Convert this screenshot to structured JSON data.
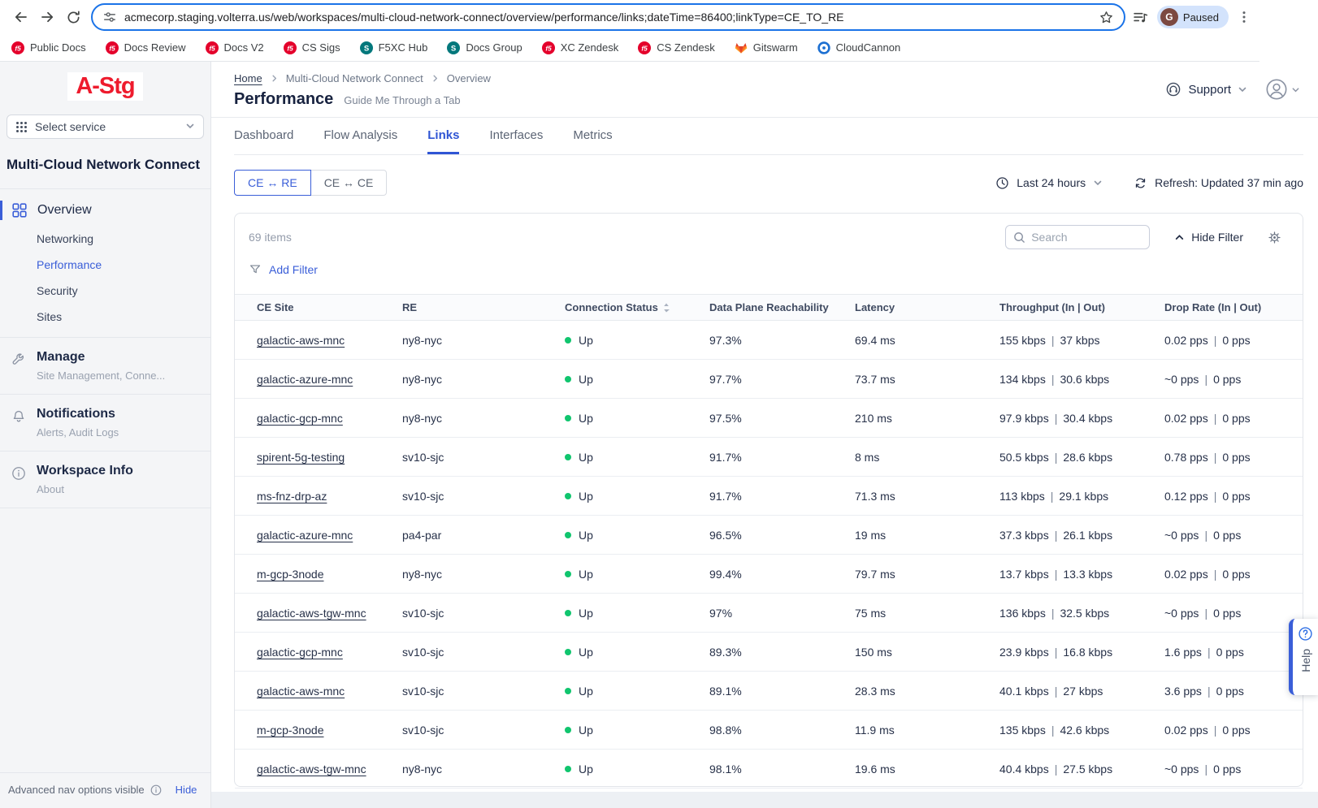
{
  "colors": {
    "accent": "#3a5ed8",
    "status_up": "#10c56e",
    "logo_red": "#ee1b2d",
    "url_focus_border": "#1a73e8"
  },
  "browser": {
    "url": "acmecorp.staging.volterra.us/web/workspaces/multi-cloud-network-connect/overview/performance/links;dateTime=86400;linkType=CE_TO_RE",
    "profile": {
      "initial": "G",
      "label": "Paused"
    },
    "bookmarks": [
      {
        "label": "Public Docs",
        "icon": "f5"
      },
      {
        "label": "Docs Review",
        "icon": "f5"
      },
      {
        "label": "Docs V2",
        "icon": "f5"
      },
      {
        "label": "CS Sigs",
        "icon": "f5"
      },
      {
        "label": "F5XC Hub",
        "icon": "sharepoint"
      },
      {
        "label": "Docs Group",
        "icon": "sharepoint"
      },
      {
        "label": "XC Zendesk",
        "icon": "f5"
      },
      {
        "label": "CS Zendesk",
        "icon": "f5"
      },
      {
        "label": "Gitswarm",
        "icon": "gitlab"
      },
      {
        "label": "CloudCannon",
        "icon": "cloudcannon"
      }
    ]
  },
  "sidebar": {
    "logo": "A-Stg",
    "service_selector": "Select service",
    "workspace_title": "Multi-Cloud Network Connect",
    "nav": {
      "overview": {
        "label": "Overview",
        "items": [
          {
            "label": "Networking",
            "active": false
          },
          {
            "label": "Performance",
            "active": true
          },
          {
            "label": "Security",
            "active": false
          },
          {
            "label": "Sites",
            "active": false
          }
        ]
      },
      "sections": [
        {
          "label": "Manage",
          "sublabel": "Site Management, Conne...",
          "icon": "wrench"
        },
        {
          "label": "Notifications",
          "sublabel": "Alerts, Audit Logs",
          "icon": "bell"
        },
        {
          "label": "Workspace Info",
          "sublabel": "About",
          "icon": "info"
        }
      ]
    },
    "footer": {
      "text": "Advanced nav options visible",
      "hide_label": "Hide"
    }
  },
  "header": {
    "breadcrumb": [
      "Home",
      "Multi-Cloud Network Connect",
      "Overview"
    ],
    "title": "Performance",
    "guide_link": "Guide Me Through a Tab",
    "support_label": "Support"
  },
  "tabs": {
    "active": "Links",
    "items": [
      "Dashboard",
      "Flow Analysis",
      "Links",
      "Interfaces",
      "Metrics"
    ]
  },
  "toolbar": {
    "link_types": [
      {
        "label": "CE ↔ RE",
        "active": true
      },
      {
        "label": "CE ↔ CE",
        "active": false
      }
    ],
    "time_range": "Last 24 hours",
    "refresh_text": "Refresh: Updated 37 min ago"
  },
  "table": {
    "items_count": "69 items",
    "search_placeholder": "Search",
    "hide_filter_label": "Hide Filter",
    "add_filter_label": "Add Filter",
    "columns": [
      "CE Site",
      "RE",
      "Connection Status",
      "Data Plane Reachability",
      "Latency",
      "Throughput (In | Out)",
      "Drop Rate (In | Out)"
    ],
    "rows": [
      {
        "ce_site": "galactic-aws-mnc",
        "re": "ny8-nyc",
        "status": "Up",
        "reachability": "97.3%",
        "latency": "69.4 ms",
        "throughput_in": "155 kbps",
        "throughput_out": "37 kbps",
        "drop_in": "0.02 pps",
        "drop_out": "0 pps"
      },
      {
        "ce_site": "galactic-azure-mnc",
        "re": "ny8-nyc",
        "status": "Up",
        "reachability": "97.7%",
        "latency": "73.7 ms",
        "throughput_in": "134 kbps",
        "throughput_out": "30.6 kbps",
        "drop_in": "~0 pps",
        "drop_out": "0 pps"
      },
      {
        "ce_site": "galactic-gcp-mnc",
        "re": "ny8-nyc",
        "status": "Up",
        "reachability": "97.5%",
        "latency": "210 ms",
        "throughput_in": "97.9 kbps",
        "throughput_out": "30.4 kbps",
        "drop_in": "0.02 pps",
        "drop_out": "0 pps"
      },
      {
        "ce_site": "spirent-5g-testing",
        "re": "sv10-sjc",
        "status": "Up",
        "reachability": "91.7%",
        "latency": "8 ms",
        "throughput_in": "50.5 kbps",
        "throughput_out": "28.6 kbps",
        "drop_in": "0.78 pps",
        "drop_out": "0 pps"
      },
      {
        "ce_site": "ms-fnz-drp-az",
        "re": "sv10-sjc",
        "status": "Up",
        "reachability": "91.7%",
        "latency": "71.3 ms",
        "throughput_in": "113 kbps",
        "throughput_out": "29.1 kbps",
        "drop_in": "0.12 pps",
        "drop_out": "0 pps"
      },
      {
        "ce_site": "galactic-azure-mnc",
        "re": "pa4-par",
        "status": "Up",
        "reachability": "96.5%",
        "latency": "19 ms",
        "throughput_in": "37.3 kbps",
        "throughput_out": "26.1 kbps",
        "drop_in": "~0 pps",
        "drop_out": "0 pps"
      },
      {
        "ce_site": "m-gcp-3node",
        "re": "ny8-nyc",
        "status": "Up",
        "reachability": "99.4%",
        "latency": "79.7 ms",
        "throughput_in": "13.7 kbps",
        "throughput_out": "13.3 kbps",
        "drop_in": "0.02 pps",
        "drop_out": "0 pps"
      },
      {
        "ce_site": "galactic-aws-tgw-mnc",
        "re": "sv10-sjc",
        "status": "Up",
        "reachability": "97%",
        "latency": "75 ms",
        "throughput_in": "136 kbps",
        "throughput_out": "32.5 kbps",
        "drop_in": "~0 pps",
        "drop_out": "0 pps"
      },
      {
        "ce_site": "galactic-gcp-mnc",
        "re": "sv10-sjc",
        "status": "Up",
        "reachability": "89.3%",
        "latency": "150 ms",
        "throughput_in": "23.9 kbps",
        "throughput_out": "16.8 kbps",
        "drop_in": "1.6 pps",
        "drop_out": "0 pps"
      },
      {
        "ce_site": "galactic-aws-mnc",
        "re": "sv10-sjc",
        "status": "Up",
        "reachability": "89.1%",
        "latency": "28.3 ms",
        "throughput_in": "40.1 kbps",
        "throughput_out": "27 kbps",
        "drop_in": "3.6 pps",
        "drop_out": "0 pps"
      },
      {
        "ce_site": "m-gcp-3node",
        "re": "sv10-sjc",
        "status": "Up",
        "reachability": "98.8%",
        "latency": "11.9 ms",
        "throughput_in": "135 kbps",
        "throughput_out": "42.6 kbps",
        "drop_in": "0.02 pps",
        "drop_out": "0 pps"
      },
      {
        "ce_site": "galactic-aws-tgw-mnc",
        "re": "ny8-nyc",
        "status": "Up",
        "reachability": "98.1%",
        "latency": "19.6 ms",
        "throughput_in": "40.4 kbps",
        "throughput_out": "27.5 kbps",
        "drop_in": "~0 pps",
        "drop_out": "0 pps"
      }
    ]
  },
  "help_tab": {
    "label": "Help"
  }
}
